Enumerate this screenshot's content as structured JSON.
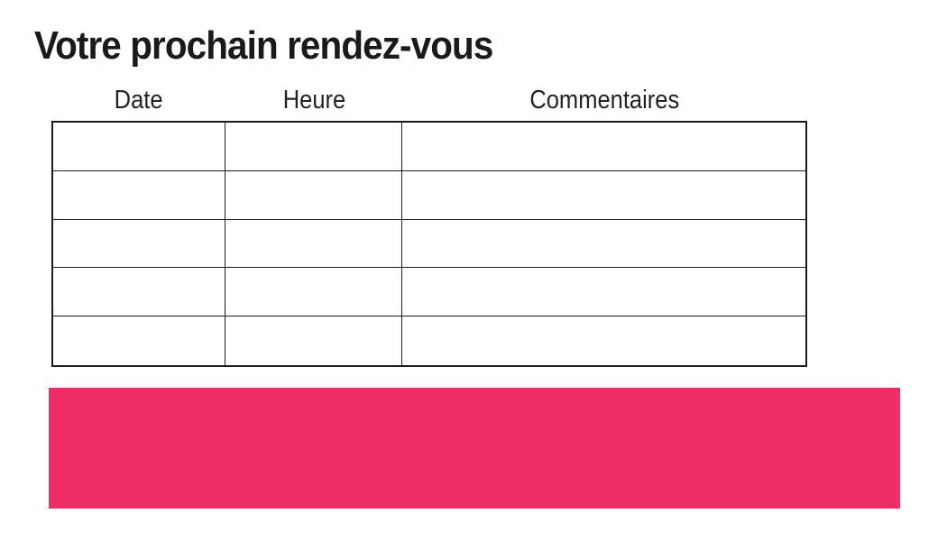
{
  "slide": {
    "title": "Votre prochain rendez-vous"
  },
  "appointments_table": {
    "headers": [
      "Date",
      "Heure",
      "Commentaires"
    ],
    "rows": [
      [
        "",
        "",
        ""
      ],
      [
        "",
        "",
        ""
      ],
      [
        "",
        "",
        ""
      ],
      [
        "",
        "",
        ""
      ],
      [
        "",
        "",
        ""
      ]
    ]
  },
  "banner": {
    "text": ""
  },
  "colors": {
    "accent": "#EE2D67",
    "table_border": "#1C1C1C",
    "heading_text": "#1A1A1A",
    "background": "#FFFFFF"
  }
}
